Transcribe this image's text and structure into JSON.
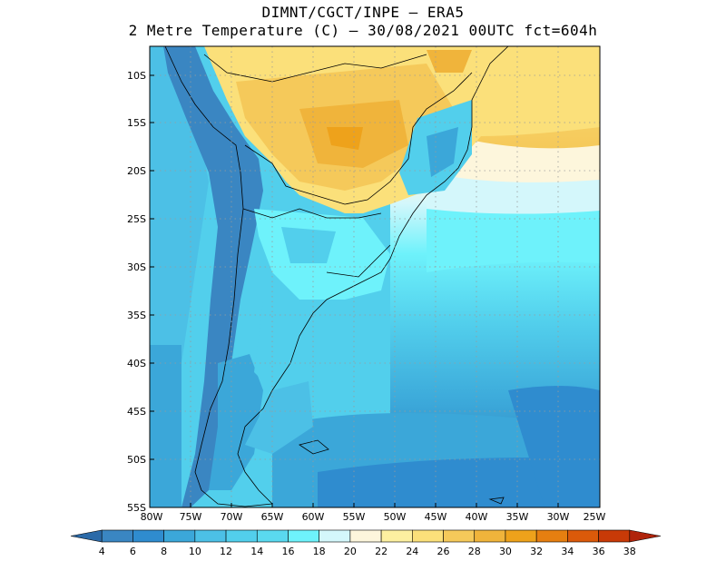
{
  "title": {
    "line1": "DIMNT/CGCT/INPE –  ERA5",
    "line2": "2 Metre Temperature (C) –  30/08/2021 00UTC fct=604h"
  },
  "map": {
    "lat_labels": [
      "10S",
      "15S",
      "20S",
      "25S",
      "30S",
      "35S",
      "40S",
      "45S",
      "50S",
      "55S"
    ],
    "lon_labels": [
      "80W",
      "75W",
      "70W",
      "65W",
      "60W",
      "55W",
      "50W",
      "45W",
      "40W",
      "35W",
      "30W",
      "25W"
    ]
  },
  "colorbar": {
    "levels": [
      "4",
      "6",
      "8",
      "10",
      "12",
      "14",
      "16",
      "18",
      "20",
      "22",
      "24",
      "26",
      "28",
      "30",
      "32",
      "34",
      "36",
      "38"
    ],
    "colors": [
      "#2b6aa8",
      "#3a86c2",
      "#2f8ccf",
      "#3ba7d9",
      "#4cc0e6",
      "#52cfec",
      "#5ad9ef",
      "#6ef2fb",
      "#d4f7fb",
      "#fdf6dc",
      "#fdf0a0",
      "#fbe07a",
      "#f5c95a",
      "#f0b43b",
      "#eea21b",
      "#e67f10",
      "#db5a0a",
      "#c83a07",
      "#b0240b"
    ]
  }
}
